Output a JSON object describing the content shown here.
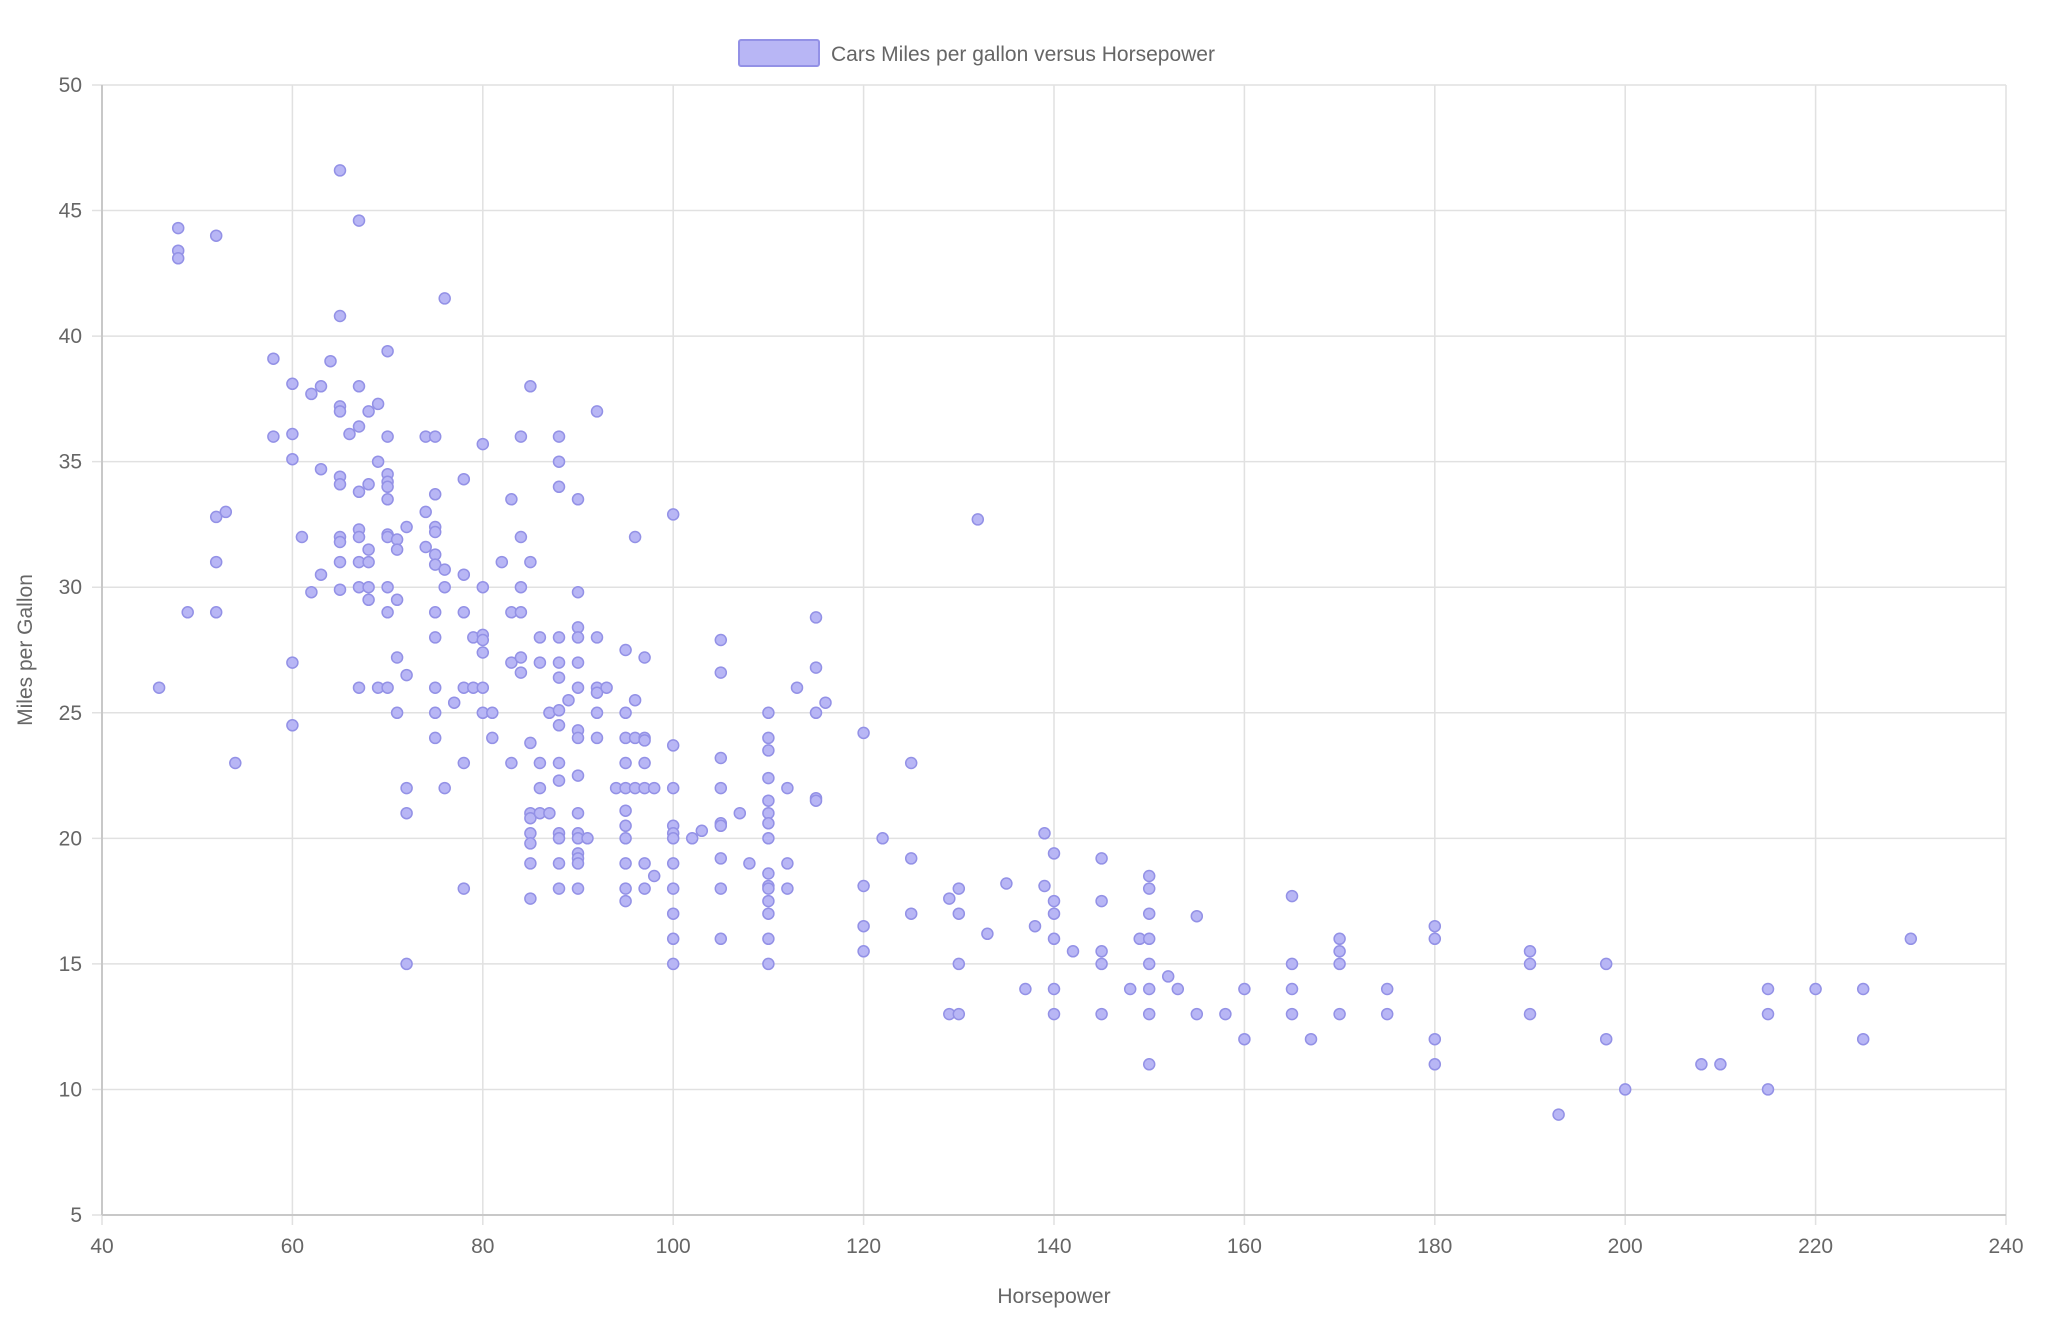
{
  "chart_data": {
    "type": "scatter",
    "title": "",
    "xlabel": "Horsepower",
    "ylabel": "Miles per Gallon",
    "xlim": [
      40,
      240
    ],
    "ylim": [
      5,
      50
    ],
    "x_ticks": [
      40,
      60,
      80,
      100,
      120,
      140,
      160,
      180,
      200,
      220,
      240
    ],
    "y_ticks": [
      5,
      10,
      15,
      20,
      25,
      30,
      35,
      40,
      45,
      50
    ],
    "grid": true,
    "legend": {
      "position": "top-center",
      "entries": [
        "Cars Miles per gallon versus Horsepower"
      ]
    },
    "colors": {
      "point_fill": "#b8b6f5",
      "point_stroke": "#9391e6",
      "grid": "#e1e1e1",
      "axis": "#c8c8c8",
      "text": "#666666"
    },
    "series": [
      {
        "name": "Cars Miles per gallon versus Horsepower",
        "points": [
          [
            46,
            26
          ],
          [
            48,
            44.3
          ],
          [
            48,
            43.4
          ],
          [
            48,
            43.1
          ],
          [
            49,
            29
          ],
          [
            52,
            44
          ],
          [
            52,
            32.8
          ],
          [
            52,
            31
          ],
          [
            52,
            29
          ],
          [
            53,
            33
          ],
          [
            54,
            23
          ],
          [
            58,
            39.1
          ],
          [
            58,
            36
          ],
          [
            60,
            38.1
          ],
          [
            60,
            36.1
          ],
          [
            60,
            35.1
          ],
          [
            60,
            27
          ],
          [
            60,
            24.5
          ],
          [
            61,
            32
          ],
          [
            62,
            37.7
          ],
          [
            62,
            29.8
          ],
          [
            63,
            38
          ],
          [
            63,
            34.7
          ],
          [
            63,
            30.5
          ],
          [
            64,
            39
          ],
          [
            65,
            46.6
          ],
          [
            65,
            40.8
          ],
          [
            65,
            37.2
          ],
          [
            65,
            37
          ],
          [
            65,
            34.4
          ],
          [
            65,
            34.1
          ],
          [
            65,
            32
          ],
          [
            65,
            31.8
          ],
          [
            65,
            31
          ],
          [
            65,
            29.9
          ],
          [
            66,
            36.1
          ],
          [
            67,
            44.6
          ],
          [
            67,
            38
          ],
          [
            67,
            36.4
          ],
          [
            67,
            33.8
          ],
          [
            67,
            32.3
          ],
          [
            67,
            32
          ],
          [
            67,
            31
          ],
          [
            67,
            30
          ],
          [
            67,
            26
          ],
          [
            68,
            37
          ],
          [
            68,
            34.1
          ],
          [
            68,
            31.5
          ],
          [
            68,
            31
          ],
          [
            68,
            30
          ],
          [
            68,
            29.5
          ],
          [
            69,
            37.3
          ],
          [
            69,
            35
          ],
          [
            69,
            26
          ],
          [
            70,
            39.4
          ],
          [
            70,
            36
          ],
          [
            70,
            34.5
          ],
          [
            70,
            34.2
          ],
          [
            70,
            34
          ],
          [
            70,
            33.5
          ],
          [
            70,
            32.1
          ],
          [
            70,
            32
          ],
          [
            70,
            30
          ],
          [
            70,
            29
          ],
          [
            70,
            26
          ],
          [
            71,
            31.9
          ],
          [
            71,
            31.5
          ],
          [
            71,
            29.5
          ],
          [
            71,
            27.2
          ],
          [
            71,
            25
          ],
          [
            72,
            32.4
          ],
          [
            72,
            26.5
          ],
          [
            72,
            22
          ],
          [
            72,
            21
          ],
          [
            72,
            15
          ],
          [
            74,
            36
          ],
          [
            74,
            33
          ],
          [
            74,
            31.6
          ],
          [
            75,
            36
          ],
          [
            75,
            33.7
          ],
          [
            75,
            32.4
          ],
          [
            75,
            32.2
          ],
          [
            75,
            31.3
          ],
          [
            75,
            30.9
          ],
          [
            75,
            29
          ],
          [
            75,
            28
          ],
          [
            75,
            26
          ],
          [
            75,
            25
          ],
          [
            75,
            24
          ],
          [
            76,
            41.5
          ],
          [
            76,
            30.7
          ],
          [
            76,
            30
          ],
          [
            76,
            22
          ],
          [
            77,
            25.4
          ],
          [
            78,
            34.3
          ],
          [
            78,
            30.5
          ],
          [
            78,
            29
          ],
          [
            78,
            26
          ],
          [
            78,
            23
          ],
          [
            78,
            18
          ],
          [
            79,
            28
          ],
          [
            79,
            26
          ],
          [
            80,
            35.7
          ],
          [
            80,
            30
          ],
          [
            80,
            28.1
          ],
          [
            80,
            27.9
          ],
          [
            80,
            27.4
          ],
          [
            80,
            26
          ],
          [
            80,
            25
          ],
          [
            81,
            25
          ],
          [
            81,
            24
          ],
          [
            82,
            31
          ],
          [
            83,
            33.5
          ],
          [
            83,
            29
          ],
          [
            83,
            27
          ],
          [
            83,
            23
          ],
          [
            84,
            36
          ],
          [
            84,
            32
          ],
          [
            84,
            30
          ],
          [
            84,
            29
          ],
          [
            84,
            27.2
          ],
          [
            84,
            26.6
          ],
          [
            85,
            38
          ],
          [
            85,
            31
          ],
          [
            85,
            23.8
          ],
          [
            85,
            21
          ],
          [
            85,
            20.8
          ],
          [
            85,
            20.2
          ],
          [
            85,
            19.8
          ],
          [
            85,
            19
          ],
          [
            85,
            17.6
          ],
          [
            86,
            28
          ],
          [
            86,
            27
          ],
          [
            86,
            23
          ],
          [
            86,
            22
          ],
          [
            86,
            21
          ],
          [
            87,
            25
          ],
          [
            87,
            21
          ],
          [
            88,
            36
          ],
          [
            88,
            35
          ],
          [
            88,
            34
          ],
          [
            88,
            28
          ],
          [
            88,
            27
          ],
          [
            88,
            26.4
          ],
          [
            88,
            25.1
          ],
          [
            88,
            24.5
          ],
          [
            88,
            23
          ],
          [
            88,
            22.3
          ],
          [
            88,
            20.2
          ],
          [
            88,
            20
          ],
          [
            88,
            19
          ],
          [
            88,
            18
          ],
          [
            89,
            25.5
          ],
          [
            90,
            33.5
          ],
          [
            90,
            29.8
          ],
          [
            90,
            28.4
          ],
          [
            90,
            28
          ],
          [
            90,
            27
          ],
          [
            90,
            26
          ],
          [
            90,
            24.3
          ],
          [
            90,
            24
          ],
          [
            90,
            22.5
          ],
          [
            90,
            21
          ],
          [
            90,
            20.2
          ],
          [
            90,
            20
          ],
          [
            90,
            19.4
          ],
          [
            90,
            19.2
          ],
          [
            90,
            19
          ],
          [
            90,
            18
          ],
          [
            91,
            20
          ],
          [
            92,
            37
          ],
          [
            92,
            28
          ],
          [
            92,
            26
          ],
          [
            92,
            25.8
          ],
          [
            92,
            25
          ],
          [
            92,
            24
          ],
          [
            93,
            26
          ],
          [
            94,
            22
          ],
          [
            95,
            27.5
          ],
          [
            95,
            25
          ],
          [
            95,
            24
          ],
          [
            95,
            23
          ],
          [
            95,
            22
          ],
          [
            95,
            21.1
          ],
          [
            95,
            20.5
          ],
          [
            95,
            20
          ],
          [
            95,
            19
          ],
          [
            95,
            18
          ],
          [
            95,
            17.5
          ],
          [
            96,
            32
          ],
          [
            96,
            25.5
          ],
          [
            96,
            24
          ],
          [
            96,
            22
          ],
          [
            97,
            27.2
          ],
          [
            97,
            24
          ],
          [
            97,
            23.9
          ],
          [
            97,
            23
          ],
          [
            97,
            22
          ],
          [
            97,
            19
          ],
          [
            97,
            18
          ],
          [
            98,
            22
          ],
          [
            98,
            18.5
          ],
          [
            100,
            32.9
          ],
          [
            100,
            23.7
          ],
          [
            100,
            22
          ],
          [
            100,
            20.5
          ],
          [
            100,
            20.2
          ],
          [
            100,
            20
          ],
          [
            100,
            19
          ],
          [
            100,
            18
          ],
          [
            100,
            17
          ],
          [
            100,
            16
          ],
          [
            100,
            15
          ],
          [
            102,
            20
          ],
          [
            103,
            20.3
          ],
          [
            105,
            27.9
          ],
          [
            105,
            26.6
          ],
          [
            105,
            23.2
          ],
          [
            105,
            22
          ],
          [
            105,
            20.6
          ],
          [
            105,
            20.5
          ],
          [
            105,
            19.2
          ],
          [
            105,
            18
          ],
          [
            105,
            16
          ],
          [
            107,
            21
          ],
          [
            108,
            19
          ],
          [
            110,
            25
          ],
          [
            110,
            24
          ],
          [
            110,
            23.5
          ],
          [
            110,
            22.4
          ],
          [
            110,
            21.5
          ],
          [
            110,
            21
          ],
          [
            110,
            20.6
          ],
          [
            110,
            20
          ],
          [
            110,
            18.6
          ],
          [
            110,
            18.1
          ],
          [
            110,
            18
          ],
          [
            110,
            17.5
          ],
          [
            110,
            17
          ],
          [
            110,
            16
          ],
          [
            110,
            15
          ],
          [
            112,
            22
          ],
          [
            112,
            19
          ],
          [
            112,
            18
          ],
          [
            113,
            26
          ],
          [
            115,
            28.8
          ],
          [
            115,
            26.8
          ],
          [
            115,
            25
          ],
          [
            115,
            21.6
          ],
          [
            115,
            21.5
          ],
          [
            116,
            25.4
          ],
          [
            120,
            24.2
          ],
          [
            120,
            18.1
          ],
          [
            120,
            16.5
          ],
          [
            120,
            15.5
          ],
          [
            122,
            20
          ],
          [
            125,
            23
          ],
          [
            125,
            19.2
          ],
          [
            125,
            17
          ],
          [
            129,
            17.6
          ],
          [
            129,
            13
          ],
          [
            130,
            18
          ],
          [
            130,
            17
          ],
          [
            130,
            15
          ],
          [
            130,
            13
          ],
          [
            132,
            32.7
          ],
          [
            133,
            16.2
          ],
          [
            135,
            18.2
          ],
          [
            137,
            14
          ],
          [
            138,
            16.5
          ],
          [
            139,
            20.2
          ],
          [
            139,
            18.1
          ],
          [
            140,
            19.4
          ],
          [
            140,
            17.5
          ],
          [
            140,
            17
          ],
          [
            140,
            16
          ],
          [
            140,
            14
          ],
          [
            140,
            13
          ],
          [
            142,
            15.5
          ],
          [
            145,
            19.2
          ],
          [
            145,
            17.5
          ],
          [
            145,
            15.5
          ],
          [
            145,
            15
          ],
          [
            145,
            13
          ],
          [
            148,
            14
          ],
          [
            149,
            16
          ],
          [
            150,
            18.5
          ],
          [
            150,
            18
          ],
          [
            150,
            17
          ],
          [
            150,
            16
          ],
          [
            150,
            15
          ],
          [
            150,
            14
          ],
          [
            150,
            13
          ],
          [
            150,
            11
          ],
          [
            152,
            14.5
          ],
          [
            153,
            14
          ],
          [
            155,
            16.9
          ],
          [
            155,
            13
          ],
          [
            158,
            13
          ],
          [
            160,
            14
          ],
          [
            160,
            12
          ],
          [
            165,
            17.7
          ],
          [
            165,
            15
          ],
          [
            165,
            14
          ],
          [
            165,
            13
          ],
          [
            167,
            12
          ],
          [
            170,
            16
          ],
          [
            170,
            15.5
          ],
          [
            170,
            15
          ],
          [
            170,
            13
          ],
          [
            175,
            14
          ],
          [
            175,
            13
          ],
          [
            180,
            16.5
          ],
          [
            180,
            16
          ],
          [
            180,
            12
          ],
          [
            180,
            11
          ],
          [
            190,
            15.5
          ],
          [
            190,
            15
          ],
          [
            190,
            13
          ],
          [
            193,
            9
          ],
          [
            198,
            15
          ],
          [
            198,
            12
          ],
          [
            200,
            10
          ],
          [
            208,
            11
          ],
          [
            210,
            11
          ],
          [
            215,
            14
          ],
          [
            215,
            13
          ],
          [
            215,
            10
          ],
          [
            220,
            14
          ],
          [
            225,
            14
          ],
          [
            225,
            12
          ],
          [
            230,
            16
          ]
        ]
      }
    ]
  }
}
